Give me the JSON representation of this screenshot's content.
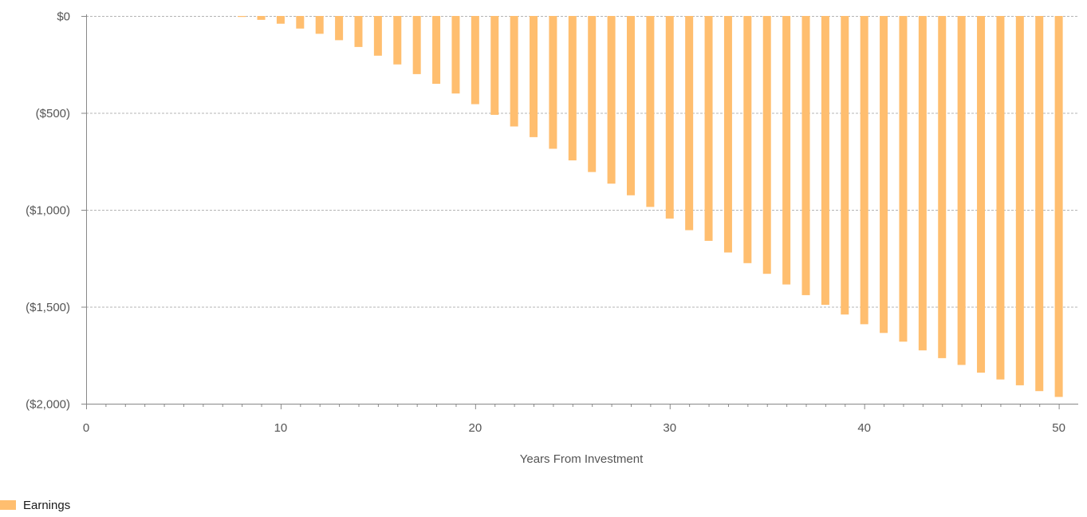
{
  "chart_data": {
    "type": "bar",
    "xlabel": "Years From Investment",
    "ylabel": "",
    "xlim": [
      0,
      51
    ],
    "ylim": [
      -2000,
      0
    ],
    "x_ticks": [
      0,
      10,
      20,
      30,
      40,
      50
    ],
    "y_ticks": [
      0,
      -500,
      -1000,
      -1500,
      -2000
    ],
    "y_tick_labels": [
      "$0",
      "($500)",
      "($1,000)",
      "($1,500)",
      "($2,000)"
    ],
    "grid": "horizontal dashed",
    "legend": "bottom-left",
    "series": [
      {
        "name": "Earnings",
        "color": "#FFBE6F",
        "x": [
          8,
          9,
          10,
          11,
          12,
          13,
          14,
          15,
          16,
          17,
          18,
          19,
          20,
          21,
          22,
          23,
          24,
          25,
          26,
          27,
          28,
          29,
          30,
          31,
          32,
          33,
          34,
          35,
          36,
          37,
          38,
          39,
          40,
          41,
          42,
          43,
          44,
          45,
          46,
          47,
          48,
          49,
          50
        ],
        "values": [
          -5,
          -20,
          -40,
          -65,
          -92,
          -125,
          -160,
          -205,
          -250,
          -300,
          -350,
          -400,
          -455,
          -510,
          -570,
          -625,
          -685,
          -745,
          -805,
          -865,
          -925,
          -985,
          -1045,
          -1105,
          -1160,
          -1220,
          -1275,
          -1330,
          -1385,
          -1440,
          -1490,
          -1540,
          -1590,
          -1635,
          -1680,
          -1725,
          -1765,
          -1800,
          -1840,
          -1875,
          -1905,
          -1935,
          -1965
        ]
      }
    ]
  }
}
